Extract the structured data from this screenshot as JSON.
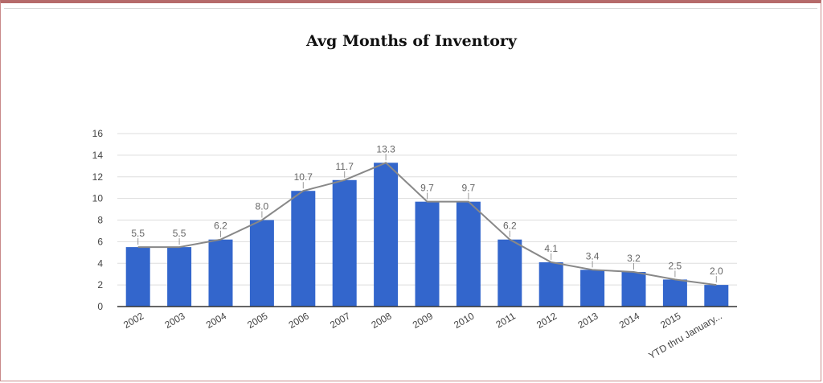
{
  "title": "Avg Months of Inventory",
  "colors": {
    "bar": "#3366cc",
    "line": "#888888",
    "grid": "#dddddd",
    "axis": "#333333"
  },
  "chart_data": {
    "type": "bar",
    "title": "Avg Months of Inventory",
    "xlabel": "",
    "ylabel": "",
    "ylim": [
      0,
      16
    ],
    "yticks": [
      0,
      2,
      4,
      6,
      8,
      10,
      12,
      14,
      16
    ],
    "grid": true,
    "trendline": true,
    "categories": [
      "2002",
      "2003",
      "2004",
      "2005",
      "2006",
      "2007",
      "2008",
      "2009",
      "2010",
      "2011",
      "2012",
      "2013",
      "2014",
      "2015",
      "YTD thru January..."
    ],
    "values": [
      5.5,
      5.5,
      6.2,
      8.0,
      10.7,
      11.7,
      13.3,
      9.7,
      9.7,
      6.2,
      4.1,
      3.4,
      3.2,
      2.5,
      2.0
    ],
    "value_labels": [
      "5.5",
      "5.5",
      "6.2",
      "8.0",
      "10.7",
      "11.7",
      "13.3",
      "9.7",
      "9.7",
      "6.2",
      "4.1",
      "3.4",
      "3.2",
      "2.5",
      "2.0"
    ]
  }
}
